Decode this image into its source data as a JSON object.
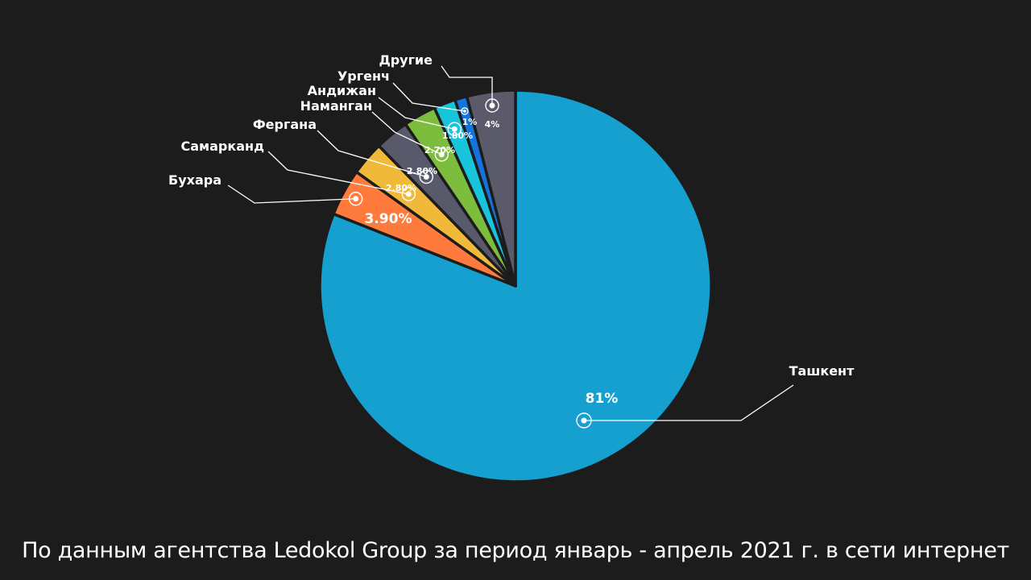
{
  "chart_data": {
    "type": "pie",
    "title": "",
    "slices": [
      {
        "name": "Ташкент",
        "value": 81,
        "label": "81%",
        "color": "#16a0cf"
      },
      {
        "name": "Бухара",
        "value": 3.9,
        "label": "3.90%",
        "color": "#ff7a3d"
      },
      {
        "name": "Самарканд",
        "value": 2.8,
        "label": "2.80%",
        "color": "#f0b93a"
      },
      {
        "name": "Фергана",
        "value": 2.8,
        "label": "2.80%",
        "color": "#585a6c"
      },
      {
        "name": "Наманган",
        "value": 2.7,
        "label": "2.70%",
        "color": "#7dbd3e"
      },
      {
        "name": "Андижан",
        "value": 1.8,
        "label": "1.80%",
        "color": "#17c4d9"
      },
      {
        "name": "Ургенч",
        "value": 1,
        "label": "1%",
        "color": "#1573e0"
      },
      {
        "name": "Другие",
        "value": 4,
        "label": "4%",
        "color": "#5b5a6a"
      }
    ]
  },
  "footer": {
    "text": "По данным агентства Ledokol Group за период январь - апрель 2021 г. в сети интернет"
  }
}
